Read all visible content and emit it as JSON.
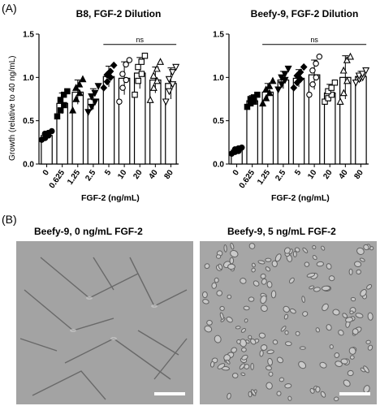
{
  "panel_a_label": "(A)",
  "panel_b_label": "(B)",
  "chart_data": [
    {
      "type": "bar",
      "title": "B8, FGF-2 Dilution",
      "xlabel": "FGF-2 (ng/mL)",
      "ylabel": "Growth (relative to 40 ng/mL)",
      "categories": [
        "0",
        "0.625",
        "1.25",
        "2.5",
        "5",
        "10",
        "20",
        "40",
        "80"
      ],
      "values": [
        0.33,
        0.7,
        0.83,
        0.75,
        1.01,
        0.99,
        1.05,
        0.97,
        0.93
      ],
      "errors": [
        0.04,
        0.12,
        0.14,
        0.12,
        0.12,
        0.19,
        0.18,
        0.15,
        0.18
      ],
      "markers": [
        "circle",
        "square",
        "triangle",
        "invtriangle",
        "diamond",
        "circle-open",
        "square-open",
        "triangle-open",
        "invtriangle-open"
      ],
      "points": [
        [
          0.28,
          0.3,
          0.33,
          0.35,
          0.36,
          0.38
        ],
        [
          0.55,
          0.62,
          0.68,
          0.74,
          0.8,
          0.84
        ],
        [
          0.62,
          0.75,
          0.82,
          0.88,
          0.92,
          0.98
        ],
        [
          0.6,
          0.66,
          0.72,
          0.78,
          0.82,
          0.9
        ],
        [
          0.88,
          0.95,
          1.0,
          1.03,
          1.07,
          1.14
        ],
        [
          0.72,
          0.88,
          0.97,
          1.04,
          1.15,
          1.2
        ],
        [
          0.8,
          0.96,
          1.04,
          1.12,
          1.18,
          1.25
        ],
        [
          0.74,
          0.88,
          0.96,
          1.02,
          1.1,
          1.18
        ],
        [
          0.72,
          0.84,
          0.92,
          0.98,
          1.06,
          1.12
        ]
      ],
      "ylim": [
        0,
        1.5
      ],
      "yticks": [
        "0.0",
        "0.5",
        "1.0",
        "1.5"
      ],
      "annotation": {
        "text": "ns",
        "from": "5",
        "to": "80"
      }
    },
    {
      "type": "bar",
      "title": "Beefy-9, FGF-2 Dilution",
      "xlabel": "FGF-2 (ng/mL)",
      "ylabel": "",
      "categories": [
        "0",
        "0.625",
        "1.25",
        "2.5",
        "5",
        "10",
        "20",
        "40",
        "80"
      ],
      "values": [
        0.16,
        0.73,
        0.83,
        0.97,
        0.99,
        1.03,
        0.82,
        1.0,
        1.01
      ],
      "errors": [
        0.03,
        0.06,
        0.1,
        0.1,
        0.1,
        0.17,
        0.1,
        0.25,
        0.06
      ],
      "markers": [
        "circle",
        "square",
        "triangle",
        "invtriangle",
        "diamond",
        "circle-open",
        "square-open",
        "triangle-open",
        "invtriangle-open"
      ],
      "points": [
        [
          0.12,
          0.14,
          0.15,
          0.17,
          0.18,
          0.19
        ],
        [
          0.66,
          0.7,
          0.72,
          0.75,
          0.77,
          0.8
        ],
        [
          0.7,
          0.76,
          0.82,
          0.86,
          0.9,
          0.96
        ],
        [
          0.86,
          0.92,
          0.97,
          1.0,
          1.04,
          1.1
        ],
        [
          0.88,
          0.94,
          0.98,
          1.02,
          1.06,
          1.12
        ],
        [
          0.8,
          0.92,
          1.0,
          1.08,
          1.16,
          1.24
        ],
        [
          0.72,
          0.76,
          0.8,
          0.84,
          0.88,
          0.94
        ],
        [
          0.72,
          0.82,
          0.96,
          1.08,
          1.2,
          1.24
        ],
        [
          0.94,
          0.98,
          1.0,
          1.02,
          1.04,
          1.08
        ]
      ],
      "ylim": [
        0,
        1.5
      ],
      "yticks": [
        "0.0",
        "0.5",
        "1.0",
        "1.5"
      ],
      "annotation": {
        "text": "ns",
        "from": "1.25",
        "to": "80"
      }
    }
  ],
  "micrographs": [
    {
      "title": "Beefy-9, 0 ng/mL FGF-2"
    },
    {
      "title": "Beefy-9, 5 ng/mL FGF-2"
    }
  ]
}
